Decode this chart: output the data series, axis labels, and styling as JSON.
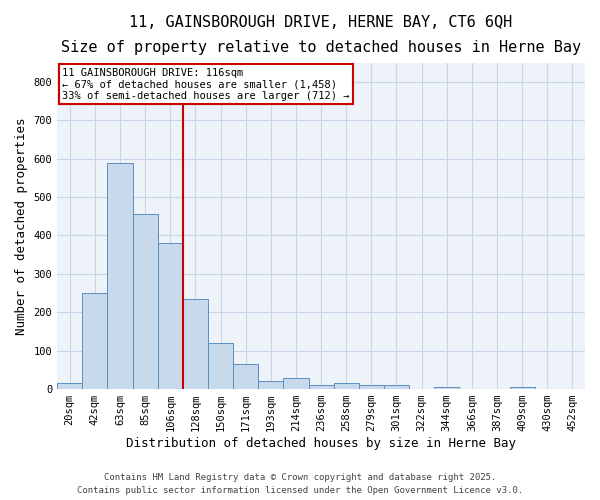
{
  "title_line1": "11, GAINSBOROUGH DRIVE, HERNE BAY, CT6 6QH",
  "title_line2": "Size of property relative to detached houses in Herne Bay",
  "xlabel": "Distribution of detached houses by size in Herne Bay",
  "ylabel": "Number of detached properties",
  "categories": [
    "20sqm",
    "42sqm",
    "63sqm",
    "85sqm",
    "106sqm",
    "128sqm",
    "150sqm",
    "171sqm",
    "193sqm",
    "214sqm",
    "236sqm",
    "258sqm",
    "279sqm",
    "301sqm",
    "322sqm",
    "344sqm",
    "366sqm",
    "387sqm",
    "409sqm",
    "430sqm",
    "452sqm"
  ],
  "values": [
    15,
    250,
    590,
    455,
    380,
    235,
    120,
    65,
    20,
    30,
    10,
    15,
    10,
    10,
    0,
    5,
    0,
    0,
    5,
    0,
    0
  ],
  "bar_color": "#c9d9ec",
  "bar_edge_color": "#5a8fc0",
  "vline_color": "#cc0000",
  "annotation_box_text": "11 GAINSBOROUGH DRIVE: 116sqm\n← 67% of detached houses are smaller (1,458)\n33% of semi-detached houses are larger (712) →",
  "annotation_box_color": "#cc0000",
  "annotation_box_fill": "#ffffff",
  "ylim": [
    0,
    850
  ],
  "yticks": [
    0,
    100,
    200,
    300,
    400,
    500,
    600,
    700,
    800
  ],
  "grid_color": "#c8d4e8",
  "bg_color": "#eef2f9",
  "footer_line1": "Contains HM Land Registry data © Crown copyright and database right 2025.",
  "footer_line2": "Contains public sector information licensed under the Open Government Licence v3.0.",
  "title_fontsize": 11,
  "subtitle_fontsize": 9.5,
  "axis_label_fontsize": 9,
  "tick_fontsize": 7.5,
  "annotation_fontsize": 7.5,
  "footer_fontsize": 6.5
}
